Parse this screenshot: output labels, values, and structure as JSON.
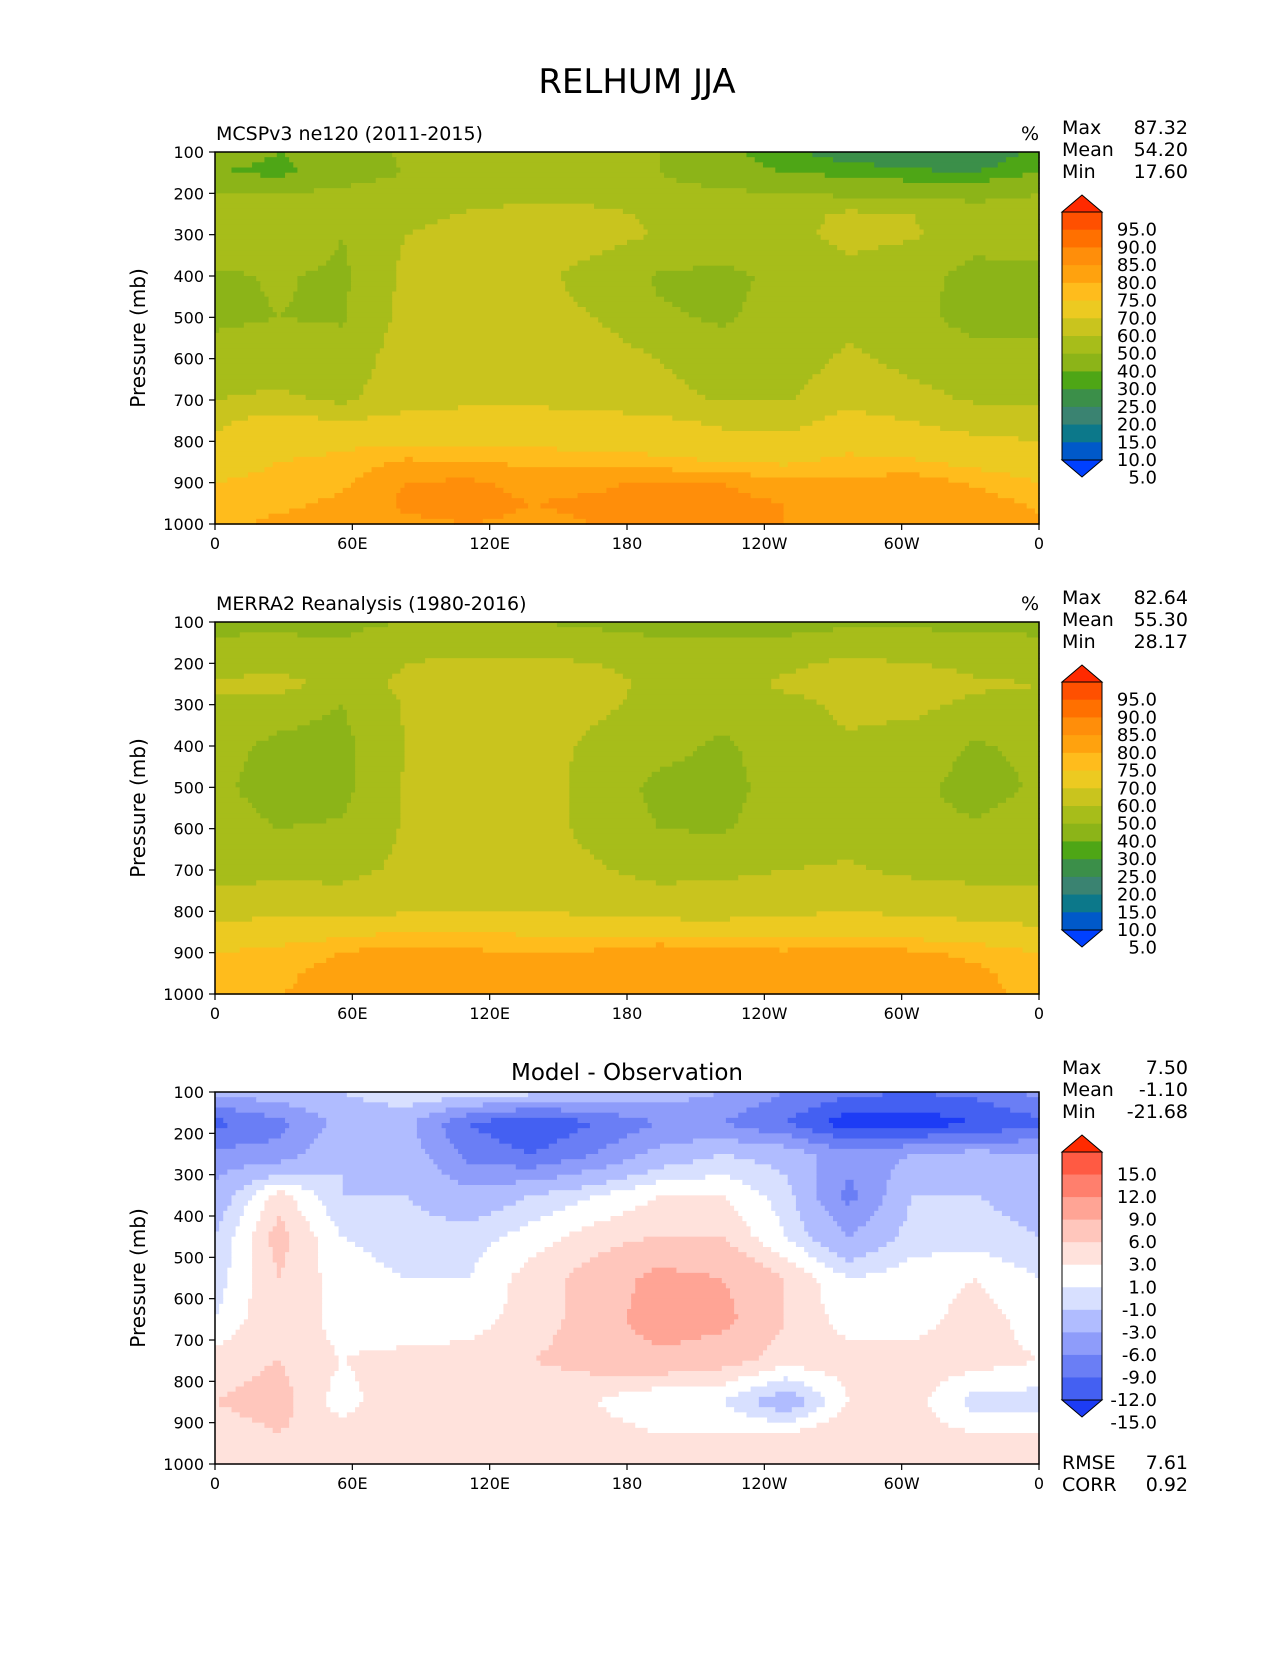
{
  "figure_title": "RELHUM JJA",
  "chart_data": [
    {
      "type": "heatmap",
      "panel": "model",
      "title": "MCSPv3 ne120 (2011-2015)",
      "units": "%",
      "ylabel": "Pressure (mb)",
      "xlabel": "",
      "x_ticks": [
        "0",
        "60E",
        "120E",
        "180",
        "120W",
        "60W",
        "0"
      ],
      "y_ticks": [
        "100",
        "200",
        "300",
        "400",
        "500",
        "600",
        "700",
        "800",
        "900",
        "1000"
      ],
      "xlim": [
        0,
        360
      ],
      "ylim": [
        1000,
        100
      ],
      "stats": [
        {
          "label": "Max",
          "value": "87.32"
        },
        {
          "label": "Mean",
          "value": "54.20"
        },
        {
          "label": "Min",
          "value": "17.60"
        }
      ],
      "colorbar": {
        "labels": [
          "95.0",
          "90.0",
          "85.0",
          "80.0",
          "75.0",
          "70.0",
          "60.0",
          "50.0",
          "40.0",
          "30.0",
          "25.0",
          "20.0",
          "15.0",
          "10.0",
          "5.0"
        ],
        "colors": [
          "#ff2a00",
          "#ff5000",
          "#ff7000",
          "#ff8e0a",
          "#ffa20e",
          "#ffbc1c",
          "#ecca21",
          "#c9c41e",
          "#a7bd1a",
          "#8cb418",
          "#4ea616",
          "#3b8f49",
          "#3a8371",
          "#0c788a",
          "#0059c9",
          "#0040ff"
        ]
      },
      "rows": [
        {
          "p": 100,
          "v": [
            35,
            30,
            32,
            42,
            45,
            47,
            45,
            40,
            32,
            26,
            22,
            20,
            20,
            27
          ]
        },
        {
          "p": 150,
          "v": [
            30,
            28,
            35,
            40,
            42,
            43,
            42,
            40,
            33,
            30,
            28,
            26,
            25,
            30
          ]
        },
        {
          "p": 200,
          "v": [
            40,
            40,
            42,
            45,
            45,
            46,
            45,
            44,
            42,
            40,
            38,
            36,
            36,
            40
          ]
        },
        {
          "p": 250,
          "v": [
            44,
            45,
            42,
            46,
            51,
            54,
            53,
            48,
            47,
            46,
            52,
            50,
            46,
            44
          ]
        },
        {
          "p": 300,
          "v": [
            50,
            50,
            40,
            50,
            55,
            57,
            55,
            49,
            45,
            47,
            53,
            51,
            45,
            46
          ]
        },
        {
          "p": 400,
          "v": [
            38,
            41,
            38,
            52,
            56,
            54,
            45,
            39,
            38,
            42,
            47,
            44,
            36,
            36
          ]
        },
        {
          "p": 500,
          "v": [
            38,
            40,
            39,
            53,
            57,
            55,
            50,
            41,
            39,
            43,
            47,
            43,
            36,
            36
          ]
        },
        {
          "p": 600,
          "v": [
            44,
            45,
            44,
            55,
            57,
            57,
            56,
            50,
            43,
            44,
            52,
            47,
            44,
            44
          ]
        },
        {
          "p": 700,
          "v": [
            50,
            52,
            48,
            56,
            58,
            58,
            57,
            54,
            49,
            49,
            58,
            53,
            49,
            48
          ]
        },
        {
          "p": 750,
          "v": [
            58,
            64,
            60,
            63,
            64,
            64,
            63,
            62,
            58,
            57,
            63,
            60,
            56,
            55
          ]
        },
        {
          "p": 800,
          "v": [
            61,
            66,
            68,
            69,
            69,
            68,
            67,
            66,
            63,
            62,
            67,
            64,
            62,
            60
          ]
        },
        {
          "p": 850,
          "v": [
            66,
            70,
            72,
            76,
            75,
            74,
            74,
            72,
            70,
            69,
            72,
            71,
            68,
            66
          ]
        },
        {
          "p": 900,
          "v": [
            70,
            72,
            74,
            80,
            81,
            78,
            79,
            81,
            80,
            76,
            76,
            78,
            74,
            70
          ]
        },
        {
          "p": 950,
          "v": [
            72,
            74,
            76,
            81,
            82,
            80,
            81,
            82,
            82,
            80,
            78,
            80,
            78,
            74
          ]
        },
        {
          "p": 1000,
          "v": [
            74,
            76,
            76,
            79,
            80,
            79,
            80,
            81,
            81,
            80,
            79,
            80,
            79,
            76
          ]
        }
      ]
    },
    {
      "type": "heatmap",
      "panel": "observation",
      "title": "MERRA2 Reanalysis (1980-2016)",
      "units": "%",
      "ylabel": "Pressure (mb)",
      "xlabel": "",
      "x_ticks": [
        "0",
        "60E",
        "120E",
        "180",
        "120W",
        "60W",
        "0"
      ],
      "y_ticks": [
        "100",
        "200",
        "300",
        "400",
        "500",
        "600",
        "700",
        "800",
        "900",
        "1000"
      ],
      "xlim": [
        0,
        360
      ],
      "ylim": [
        1000,
        100
      ],
      "stats": [
        {
          "label": "Max",
          "value": "82.64"
        },
        {
          "label": "Mean",
          "value": "55.30"
        },
        {
          "label": "Min",
          "value": "28.17"
        }
      ],
      "colorbar": {
        "labels": [
          "95.0",
          "90.0",
          "85.0",
          "80.0",
          "75.0",
          "70.0",
          "60.0",
          "50.0",
          "40.0",
          "30.0",
          "25.0",
          "20.0",
          "15.0",
          "10.0",
          "5.0"
        ],
        "colors": [
          "#ff2a00",
          "#ff5000",
          "#ff7000",
          "#ff8e0a",
          "#ffa20e",
          "#ffbc1c",
          "#ecca21",
          "#c9c41e",
          "#a7bd1a",
          "#8cb418",
          "#4ea616",
          "#3b8f49",
          "#3a8371",
          "#0c788a",
          "#0059c9",
          "#0040ff"
        ]
      },
      "rows": [
        {
          "p": 100,
          "v": [
            38,
            38,
            38,
            40,
            40,
            40,
            38,
            36,
            36,
            36,
            38,
            38,
            38,
            38
          ]
        },
        {
          "p": 200,
          "v": [
            44,
            45,
            43,
            50,
            52,
            52,
            50,
            47,
            46,
            48,
            52,
            50,
            46,
            44
          ]
        },
        {
          "p": 250,
          "v": [
            52,
            55,
            45,
            52,
            55,
            55,
            53,
            48,
            45,
            52,
            55,
            60,
            52,
            50
          ]
        },
        {
          "p": 300,
          "v": [
            48,
            44,
            40,
            51,
            54,
            54,
            52,
            47,
            44,
            47,
            52,
            53,
            47,
            48
          ]
        },
        {
          "p": 400,
          "v": [
            43,
            38,
            37,
            50,
            54,
            54,
            48,
            44,
            38,
            46,
            49,
            45,
            39,
            42
          ]
        },
        {
          "p": 500,
          "v": [
            42,
            36,
            37,
            51,
            54,
            54,
            47,
            37,
            36,
            45,
            47,
            42,
            37,
            41
          ]
        },
        {
          "p": 600,
          "v": [
            44,
            40,
            41,
            51,
            54,
            53,
            48,
            40,
            39,
            45,
            47,
            42,
            41,
            44
          ]
        },
        {
          "p": 700,
          "v": [
            46,
            47,
            47,
            52,
            54,
            53,
            51,
            47,
            48,
            50,
            51,
            48,
            47,
            47
          ]
        },
        {
          "p": 800,
          "v": [
            56,
            58,
            56,
            59,
            60,
            60,
            58,
            56,
            56,
            58,
            60,
            58,
            56,
            55
          ]
        },
        {
          "p": 850,
          "v": [
            63,
            66,
            68,
            70,
            70,
            69,
            68,
            67,
            66,
            67,
            68,
            67,
            65,
            62
          ]
        },
        {
          "p": 900,
          "v": [
            70,
            72,
            75,
            78,
            76,
            75,
            76,
            80,
            78,
            76,
            78,
            76,
            74,
            70
          ]
        },
        {
          "p": 950,
          "v": [
            73,
            74,
            77,
            78,
            77,
            76,
            77,
            78,
            78,
            77,
            77,
            77,
            76,
            73
          ]
        },
        {
          "p": 1000,
          "v": [
            74,
            75,
            76,
            77,
            76,
            76,
            77,
            77,
            77,
            76,
            77,
            77,
            76,
            74
          ]
        }
      ]
    },
    {
      "type": "heatmap",
      "panel": "difference",
      "title": "Model - Observation",
      "units": "",
      "ylabel": "Pressure (mb)",
      "xlabel": "",
      "x_ticks": [
        "0",
        "60E",
        "120E",
        "180",
        "120W",
        "60W",
        "0"
      ],
      "y_ticks": [
        "100",
        "200",
        "300",
        "400",
        "500",
        "600",
        "700",
        "800",
        "900",
        "1000"
      ],
      "xlim": [
        0,
        360
      ],
      "ylim": [
        1000,
        100
      ],
      "stats": [
        {
          "label": "Max",
          "value": "7.50"
        },
        {
          "label": "Mean",
          "value": "-1.10"
        },
        {
          "label": "Min",
          "value": "-21.68"
        }
      ],
      "footer_stats": [
        {
          "label": "RMSE",
          "value": "7.61"
        },
        {
          "label": "CORR",
          "value": "0.92"
        }
      ],
      "colorbar": {
        "labels": [
          "15.0",
          "12.0",
          "9.0",
          "6.0",
          "3.0",
          "1.0",
          "-1.0",
          "-3.0",
          "-6.0",
          "-9.0",
          "-12.0",
          "-15.0"
        ],
        "colors": [
          "#ff2a00",
          "#ff5a43",
          "#ff7f6d",
          "#ffa495",
          "#ffc6bc",
          "#ffe2dc",
          "#ffffff",
          "#d8e0ff",
          "#b0bcff",
          "#8e9cfa",
          "#6a7ef5",
          "#4460f2",
          "#1d3cf5"
        ]
      },
      "rows": [
        {
          "p": 100,
          "v": [
            -5,
            -4,
            -3,
            -1,
            -1,
            -2,
            -3,
            -4,
            -6,
            -9,
            -11,
            -12,
            -11,
            -8
          ]
        },
        {
          "p": 175,
          "v": [
            -13,
            -10,
            -5,
            -5,
            -12,
            -15,
            -12,
            -9,
            -9,
            -12,
            -17,
            -17,
            -15,
            -13
          ]
        },
        {
          "p": 250,
          "v": [
            -8,
            -8,
            -3,
            -4,
            -10,
            -12,
            -9,
            -5,
            -3,
            -4,
            -8,
            -6,
            -5,
            -6
          ]
        },
        {
          "p": 350,
          "v": [
            -5,
            2,
            -3,
            -3,
            -5,
            -3,
            -1,
            1,
            1,
            -2,
            -10,
            -3,
            -3,
            -4
          ]
        },
        {
          "p": 450,
          "v": [
            -3,
            4,
            -1,
            -2,
            -2,
            0,
            2,
            3,
            3,
            -1,
            -6,
            -2,
            -2,
            -3
          ]
        },
        {
          "p": 550,
          "v": [
            -2,
            3,
            0,
            -1,
            -1,
            2,
            4,
            7,
            6,
            3,
            -1,
            0,
            1,
            -1
          ]
        },
        {
          "p": 650,
          "v": [
            -1,
            3,
            0,
            -1,
            0,
            2,
            4,
            8,
            7,
            3,
            0,
            0,
            2,
            0
          ]
        },
        {
          "p": 750,
          "v": [
            2,
            3,
            1,
            2,
            2,
            3,
            4,
            5,
            4,
            2,
            2,
            2,
            2,
            1
          ]
        },
        {
          "p": 850,
          "v": [
            3,
            4,
            0,
            3,
            2,
            1,
            1,
            -1,
            -1,
            -5,
            1,
            2,
            -2,
            -2
          ]
        },
        {
          "p": 925,
          "v": [
            2,
            3,
            2,
            2,
            3,
            2,
            2,
            1,
            1,
            1,
            3,
            2,
            1,
            1
          ]
        },
        {
          "p": 1000,
          "v": [
            1,
            2,
            1,
            2,
            2,
            1,
            2,
            1,
            1,
            1,
            2,
            2,
            1,
            1
          ]
        }
      ]
    }
  ]
}
